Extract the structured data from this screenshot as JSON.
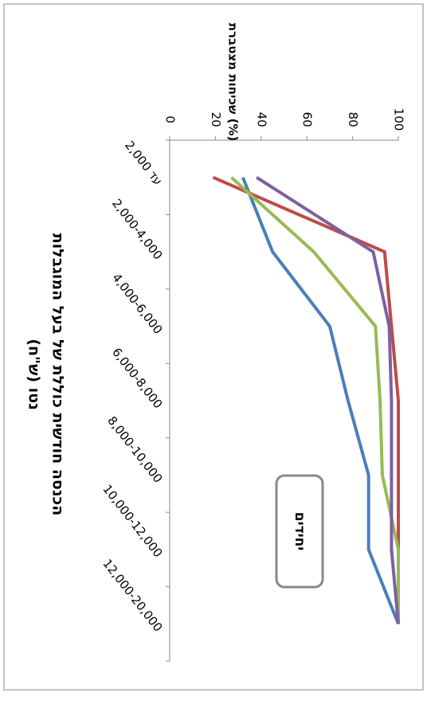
{
  "chart_data": {
    "type": "line",
    "title": "שכיחות מצטברת (%)",
    "x_label": [
      "הכנסה חודשית כוללת של בעל המוגבלות",
      "נטו (ש\"ח)"
    ],
    "annotation": "יחידים",
    "categories": [
      "עד 2,000",
      "2,000-4,000",
      "4,000-6,000",
      "6,000-8,000",
      "8,000-10,000",
      "10,000-12,000",
      "12,000-20,000"
    ],
    "series": [
      {
        "color": "#4a7ebb",
        "values": [
          32,
          45,
          70,
          78,
          87,
          87,
          100
        ]
      },
      {
        "color": "#be4b48",
        "values": [
          19,
          94,
          97,
          100,
          100,
          100,
          100
        ]
      },
      {
        "color": "#98b954",
        "values": [
          27,
          63,
          90,
          92,
          93,
          100,
          100
        ]
      },
      {
        "color": "#7d60a0",
        "values": [
          38,
          89,
          96,
          97,
          97,
          97,
          100
        ]
      }
    ],
    "ylim": [
      0,
      100
    ],
    "yticks": [
      0,
      20,
      40,
      60,
      80,
      100
    ]
  }
}
